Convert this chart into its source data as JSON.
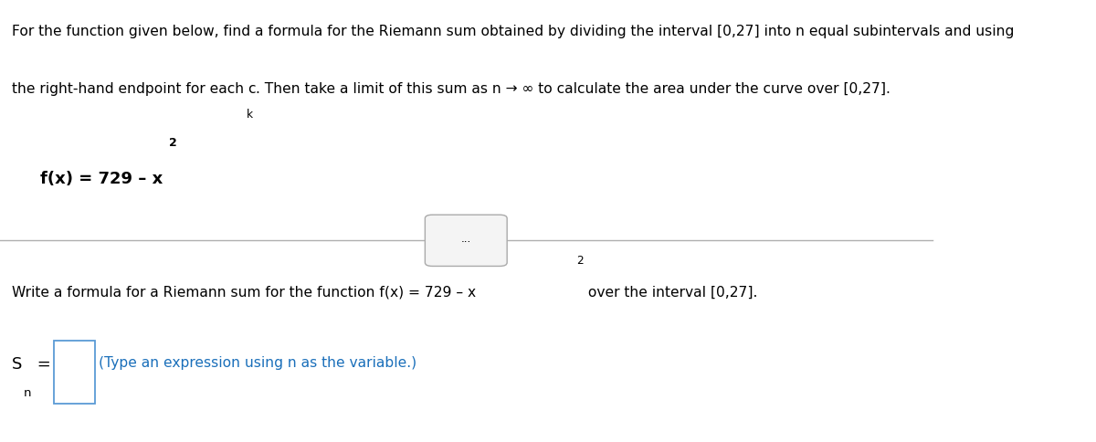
{
  "panel_color": "#ffffff",
  "title_line1": "For the function given below, find a formula for the Riemann sum obtained by dividing the interval [0,27] into n equal subintervals and using",
  "title_line2a": "the right-hand endpoint for each c",
  "title_line2_sub": "k",
  "title_line2b": ". Then take a limit of this sum as n → ∞ to calculate the area under the curve over [0,27].",
  "fx_base": "f(x) = 729 – x",
  "fx_sup": "2",
  "separator_dots": "...",
  "write_base": "Write a formula for a Riemann sum for the function f(x) = 729 – x",
  "write_sup": "2",
  "write_end": " over the interval [0,27].",
  "sn_s": "S",
  "sn_n": "n",
  "sn_eq": " = ",
  "sn_hint": "(Type an expression using n as the variable.)",
  "black": "#000000",
  "blue": "#1a6fba",
  "line_color": "#b0b0b0",
  "box_edge_color": "#5b9bd5",
  "dots_box_edge": "#aaaaaa",
  "dots_box_face": "#f4f4f4"
}
